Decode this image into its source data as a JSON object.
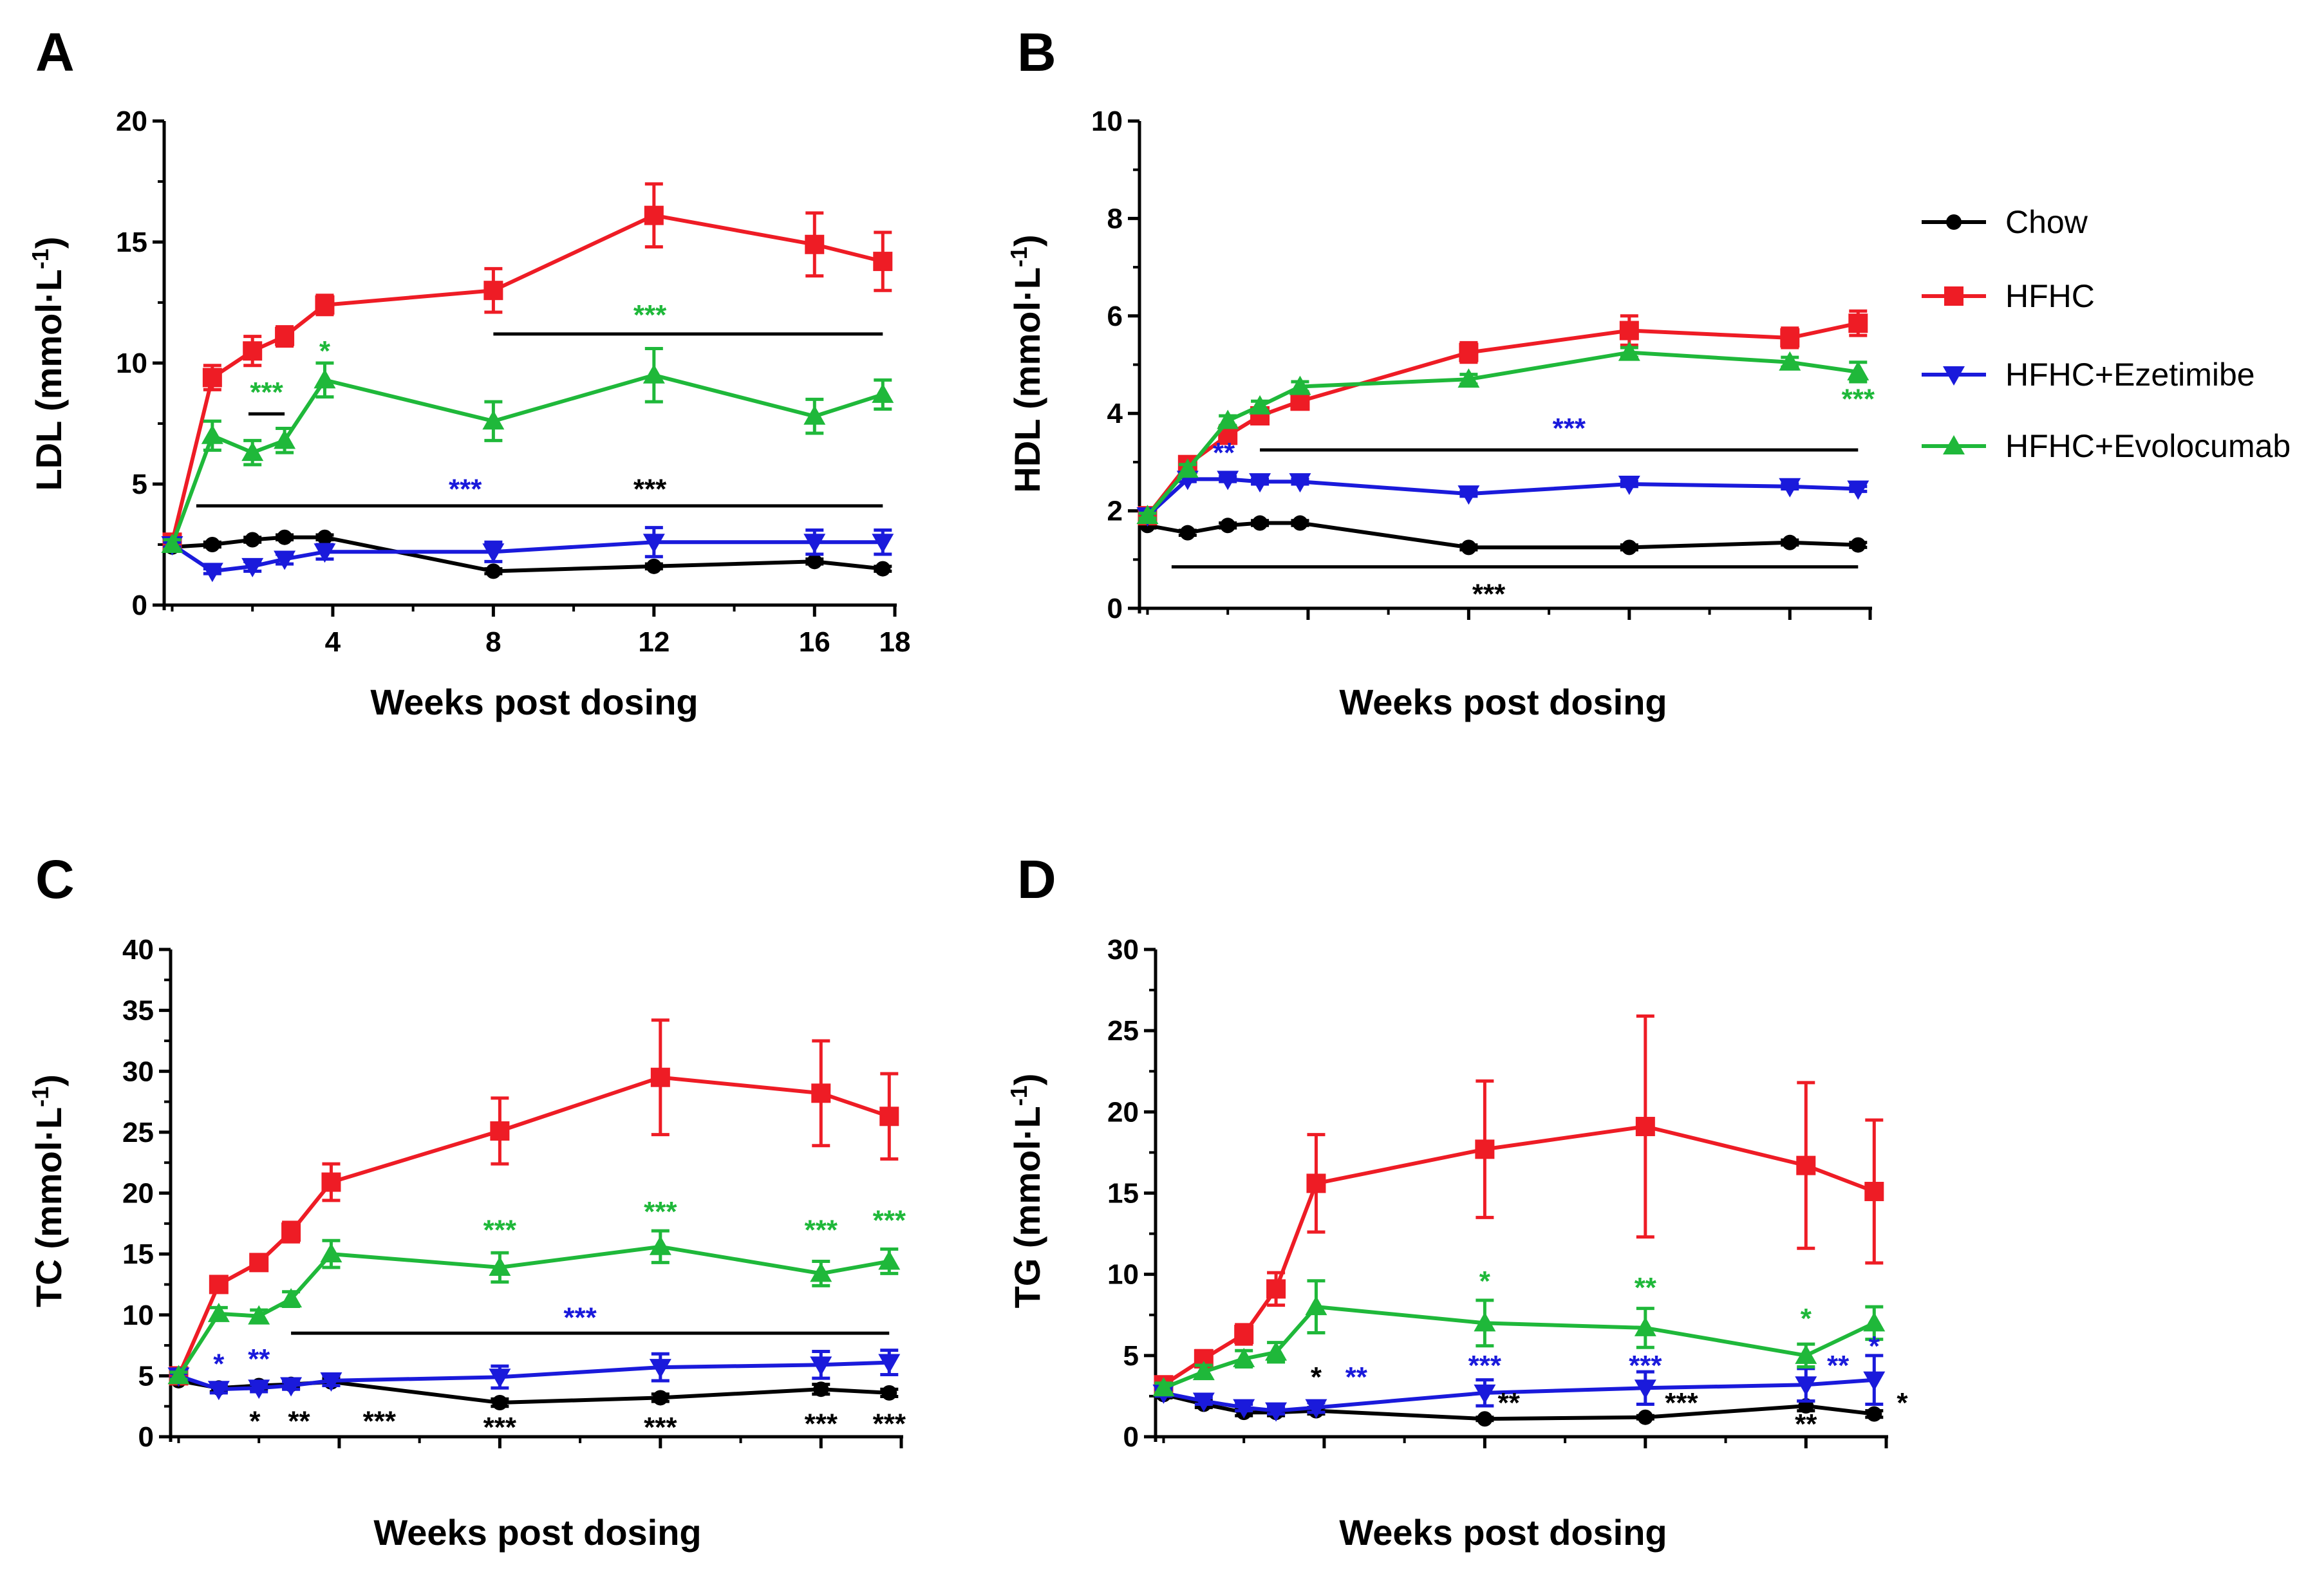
{
  "figure": {
    "colors": {
      "chow": "#000000",
      "hfhc": "#ee1c25",
      "ezetimibe": "#1a1adb",
      "evolocumab": "#1fb83a"
    },
    "legend": {
      "items": [
        {
          "label": "Chow",
          "key": "chow",
          "marker": "circle"
        },
        {
          "label": "HFHC",
          "key": "hfhc",
          "marker": "square"
        },
        {
          "label": "HFHC+Ezetimibe",
          "key": "ezetimibe",
          "marker": "triangle-down"
        },
        {
          "label": "HFHC+Evolocumab",
          "key": "evolocumab",
          "marker": "triangle-up"
        }
      ]
    }
  },
  "chart_data": [
    {
      "panel": "A",
      "type": "line",
      "ylabel": "LDL (mmol·L",
      "ylabel_sup": "-1",
      "ylabel_close": ")",
      "xlabel": "Weeks post dosing",
      "ylim": [
        0,
        20
      ],
      "yticks": [
        "0",
        "5",
        "10",
        "15",
        "20"
      ],
      "xlim": [
        -0.2,
        18
      ],
      "xticks": [
        "4",
        "8",
        "12",
        "16",
        "18"
      ],
      "xtick_values": [
        4,
        8,
        12,
        16,
        18
      ],
      "series": [
        {
          "name": "Chow",
          "key": "chow",
          "x": [
            0,
            1,
            2,
            2.8,
            3.8,
            8,
            12,
            16,
            17.7
          ],
          "y": [
            2.4,
            2.5,
            2.7,
            2.8,
            2.8,
            1.4,
            1.6,
            1.8,
            1.5
          ],
          "err": [
            0.1,
            0.1,
            0.1,
            0.1,
            0.1,
            0.1,
            0.1,
            0.1,
            0.1
          ]
        },
        {
          "name": "HFHC",
          "key": "hfhc",
          "x": [
            0,
            1,
            2,
            2.8,
            3.8,
            8,
            12,
            16,
            17.7
          ],
          "y": [
            2.6,
            9.4,
            10.5,
            11.1,
            12.4,
            13.0,
            16.1,
            14.9,
            14.2
          ],
          "err": [
            0.2,
            0.5,
            0.6,
            0.4,
            0.4,
            0.9,
            1.3,
            1.3,
            1.2
          ]
        },
        {
          "name": "HFHC+Ezetimibe",
          "key": "ezetimibe",
          "x": [
            0,
            1,
            2,
            2.8,
            3.8,
            8,
            12,
            16,
            17.7
          ],
          "y": [
            2.5,
            1.4,
            1.6,
            1.9,
            2.2,
            2.2,
            2.6,
            2.6,
            2.6
          ],
          "err": [
            0.1,
            0.1,
            0.2,
            0.2,
            0.3,
            0.4,
            0.6,
            0.5,
            0.5
          ]
        },
        {
          "name": "HFHC+Evolocumab",
          "key": "evolocumab",
          "x": [
            0,
            1,
            2,
            2.8,
            3.8,
            8,
            12,
            16,
            17.7
          ],
          "y": [
            2.5,
            7.0,
            6.3,
            6.8,
            9.3,
            7.6,
            9.5,
            7.8,
            8.7
          ],
          "err": [
            0.2,
            0.6,
            0.5,
            0.5,
            0.7,
            0.8,
            1.1,
            0.7,
            0.6
          ]
        }
      ],
      "sig_bars": [
        {
          "x1": 0.6,
          "x2": 17.7,
          "y": 4.1
        },
        {
          "x1": 8,
          "x2": 17.7,
          "y": 11.2
        },
        {
          "x1": 1.9,
          "x2": 2.8,
          "y": 7.9
        }
      ],
      "annotations": [
        {
          "text": "***",
          "color": "evolocumab",
          "x": 11.9,
          "y": 11.6
        },
        {
          "text": "***",
          "color": "evolocumab",
          "x": 2.35,
          "y": 8.4
        },
        {
          "text": "*",
          "color": "evolocumab",
          "x": 3.8,
          "y": 10.1
        },
        {
          "text": "***",
          "color": "ezetimibe",
          "x": 7.3,
          "y": 4.4
        },
        {
          "text": "***",
          "color": "chow",
          "x": 11.9,
          "y": 4.4
        }
      ]
    },
    {
      "panel": "B",
      "type": "line",
      "ylabel": "HDL (mmol·L",
      "ylabel_sup": "-1",
      "ylabel_close": ")",
      "xlabel": "Weeks post dosing",
      "ylim": [
        0,
        10
      ],
      "yticks": [
        "0",
        "2",
        "4",
        "6",
        "8",
        "10"
      ],
      "xlim": [
        -0.2,
        18
      ],
      "xticks": [
        "",
        "",
        "",
        "",
        ""
      ],
      "xtick_values": [
        4,
        8,
        12,
        16,
        18
      ],
      "series": [
        {
          "name": "Chow",
          "key": "chow",
          "x": [
            0,
            1,
            2,
            2.8,
            3.8,
            8,
            12,
            16,
            17.7
          ],
          "y": [
            1.7,
            1.55,
            1.7,
            1.75,
            1.75,
            1.25,
            1.25,
            1.35,
            1.3
          ],
          "err": [
            0.05,
            0.05,
            0.05,
            0.05,
            0.05,
            0.05,
            0.05,
            0.05,
            0.05
          ]
        },
        {
          "name": "HFHC",
          "key": "hfhc",
          "x": [
            0,
            1,
            2,
            2.8,
            3.8,
            8,
            12,
            16,
            17.7
          ],
          "y": [
            1.9,
            2.95,
            3.55,
            3.95,
            4.25,
            5.25,
            5.7,
            5.55,
            5.85
          ],
          "err": [
            0.05,
            0.1,
            0.1,
            0.1,
            0.1,
            0.2,
            0.3,
            0.2,
            0.25
          ]
        },
        {
          "name": "HFHC+Ezetimibe",
          "key": "ezetimibe",
          "x": [
            0,
            1,
            2,
            2.8,
            3.8,
            8,
            12,
            16,
            17.7
          ],
          "y": [
            1.9,
            2.65,
            2.65,
            2.6,
            2.6,
            2.35,
            2.55,
            2.5,
            2.45
          ],
          "err": [
            0.05,
            0.05,
            0.05,
            0.05,
            0.05,
            0.05,
            0.05,
            0.05,
            0.05
          ]
        },
        {
          "name": "HFHC+Evolocumab",
          "key": "evolocumab",
          "x": [
            0,
            1,
            2,
            2.8,
            3.8,
            8,
            12,
            16,
            17.7
          ],
          "y": [
            1.9,
            2.85,
            3.85,
            4.15,
            4.55,
            4.7,
            5.25,
            5.05,
            4.85
          ],
          "err": [
            0.05,
            0.1,
            0.1,
            0.1,
            0.1,
            0.1,
            0.1,
            0.1,
            0.2
          ]
        }
      ],
      "sig_bars": [
        {
          "x1": 0.6,
          "x2": 17.7,
          "y": 0.85
        },
        {
          "x1": 2.8,
          "x2": 17.7,
          "y": 3.25
        }
      ],
      "annotations": [
        {
          "text": "**",
          "color": "ezetimibe",
          "x": 1.9,
          "y": 3.0
        },
        {
          "text": "***",
          "color": "ezetimibe",
          "x": 10.5,
          "y": 3.5
        },
        {
          "text": "***",
          "color": "evolocumab",
          "x": 17.7,
          "y": 4.1
        },
        {
          "text": "***",
          "color": "chow",
          "x": 8.5,
          "y": 0.1
        }
      ]
    },
    {
      "panel": "C",
      "type": "line",
      "ylabel": "TC (mmol·L",
      "ylabel_sup": "-1",
      "ylabel_close": ")",
      "xlabel": "Weeks post dosing",
      "ylim": [
        0,
        40
      ],
      "yticks": [
        "0",
        "5",
        "10",
        "15",
        "20",
        "25",
        "30",
        "35",
        "40"
      ],
      "xlim": [
        -0.2,
        18
      ],
      "xticks": [
        "",
        "",
        "",
        "",
        ""
      ],
      "xtick_values": [
        4,
        8,
        12,
        16,
        18
      ],
      "series": [
        {
          "name": "Chow",
          "key": "chow",
          "x": [
            0,
            1,
            2,
            2.8,
            3.8,
            8,
            12,
            16,
            17.7
          ],
          "y": [
            4.6,
            4.0,
            4.2,
            4.3,
            4.5,
            2.8,
            3.2,
            3.9,
            3.6
          ],
          "err": [
            0.2,
            0.3,
            0.3,
            0.3,
            0.3,
            0.3,
            0.3,
            0.4,
            0.3
          ]
        },
        {
          "name": "HFHC",
          "key": "hfhc",
          "x": [
            0,
            1,
            2,
            2.8,
            3.8,
            8,
            12,
            16,
            17.7
          ],
          "y": [
            5.0,
            12.5,
            14.3,
            16.8,
            20.9,
            25.1,
            29.5,
            28.2,
            26.3
          ],
          "err": [
            0.3,
            0.5,
            0.6,
            0.8,
            1.5,
            2.7,
            4.7,
            4.3,
            3.5
          ]
        },
        {
          "name": "HFHC+Ezetimibe",
          "key": "ezetimibe",
          "x": [
            0,
            1,
            2,
            2.8,
            3.8,
            8,
            12,
            16,
            17.7
          ],
          "y": [
            5.0,
            3.9,
            4.0,
            4.2,
            4.6,
            4.9,
            5.7,
            5.9,
            6.1
          ],
          "err": [
            0.2,
            0.3,
            0.3,
            0.3,
            0.4,
            0.9,
            1.1,
            1.1,
            1.0
          ]
        },
        {
          "name": "HFHC+Evolocumab",
          "key": "evolocumab",
          "x": [
            0,
            1,
            2,
            2.8,
            3.8,
            8,
            12,
            16,
            17.7
          ],
          "y": [
            5.0,
            10.1,
            9.9,
            11.3,
            15.0,
            13.9,
            15.6,
            13.4,
            14.4
          ],
          "err": [
            0.3,
            0.5,
            0.5,
            0.6,
            1.1,
            1.2,
            1.3,
            1.0,
            1.0
          ]
        }
      ],
      "sig_bars": [
        {
          "x1": 2.8,
          "x2": 17.7,
          "y": 8.5
        }
      ],
      "annotations": [
        {
          "text": "***",
          "color": "ezetimibe",
          "x": 10,
          "y": 9.0
        },
        {
          "text": "***",
          "color": "evolocumab",
          "x": 8,
          "y": 16.2
        },
        {
          "text": "***",
          "color": "evolocumab",
          "x": 12,
          "y": 17.7
        },
        {
          "text": "***",
          "color": "evolocumab",
          "x": 16,
          "y": 16.2
        },
        {
          "text": "***",
          "color": "evolocumab",
          "x": 17.7,
          "y": 17.0
        },
        {
          "text": "*",
          "color": "ezetimibe",
          "x": 1.0,
          "y": 5.2
        },
        {
          "text": "**",
          "color": "ezetimibe",
          "x": 2.0,
          "y": 5.6
        },
        {
          "text": "*",
          "color": "chow",
          "x": 1.9,
          "y": 0.5
        },
        {
          "text": "**",
          "color": "chow",
          "x": 3.0,
          "y": 0.5
        },
        {
          "text": "***",
          "color": "chow",
          "x": 5.0,
          "y": 0.5
        },
        {
          "text": "***",
          "color": "chow",
          "x": 8.0,
          "y": 0.0
        },
        {
          "text": "***",
          "color": "chow",
          "x": 12.0,
          "y": 0.0
        },
        {
          "text": "***",
          "color": "chow",
          "x": 16.0,
          "y": 0.3
        },
        {
          "text": "***",
          "color": "chow",
          "x": 17.7,
          "y": 0.3
        }
      ]
    },
    {
      "panel": "D",
      "type": "line",
      "ylabel": "TG (mmol·L",
      "ylabel_sup": "-1",
      "ylabel_close": ")",
      "xlabel": "Weeks post dosing",
      "ylim": [
        0,
        30
      ],
      "yticks": [
        "0",
        "5",
        "10",
        "15",
        "20",
        "25",
        "30"
      ],
      "xlim": [
        -0.2,
        18
      ],
      "xticks": [
        "",
        "",
        "",
        "",
        ""
      ],
      "xtick_values": [
        4,
        8,
        12,
        16,
        18
      ],
      "series": [
        {
          "name": "Chow",
          "key": "chow",
          "x": [
            0,
            1,
            2,
            2.8,
            3.8,
            8,
            12,
            16,
            17.7
          ],
          "y": [
            2.6,
            2.0,
            1.5,
            1.5,
            1.6,
            1.1,
            1.2,
            1.9,
            1.4
          ],
          "err": [
            0.2,
            0.2,
            0.2,
            0.2,
            0.2,
            0.1,
            0.1,
            0.3,
            0.2
          ]
        },
        {
          "name": "HFHC",
          "key": "hfhc",
          "x": [
            0,
            1,
            2,
            2.8,
            3.8,
            8,
            12,
            16,
            17.7
          ],
          "y": [
            3.2,
            4.8,
            6.3,
            9.1,
            15.6,
            17.7,
            19.1,
            16.7,
            15.1
          ],
          "err": [
            0.3,
            0.5,
            0.6,
            1.0,
            3.0,
            4.2,
            6.8,
            5.1,
            4.4
          ]
        },
        {
          "name": "HFHC+Ezetimibe",
          "key": "ezetimibe",
          "x": [
            0,
            1,
            2,
            2.8,
            3.8,
            8,
            12,
            16,
            17.7
          ],
          "y": [
            2.7,
            2.2,
            1.8,
            1.6,
            1.8,
            2.7,
            3.0,
            3.2,
            3.5
          ],
          "err": [
            0.2,
            0.2,
            0.2,
            0.2,
            0.3,
            0.8,
            1.0,
            1.0,
            1.5
          ]
        },
        {
          "name": "HFHC+Evolocumab",
          "key": "evolocumab",
          "x": [
            0,
            1,
            2,
            2.8,
            3.8,
            8,
            12,
            16,
            17.7
          ],
          "y": [
            3.0,
            4.0,
            4.8,
            5.2,
            8.0,
            7.0,
            6.7,
            5.0,
            7.0
          ],
          "err": [
            0.3,
            0.4,
            0.5,
            0.6,
            1.6,
            1.4,
            1.2,
            0.7,
            1.0
          ]
        }
      ],
      "sig_bars": [],
      "annotations": [
        {
          "text": "*",
          "color": "evolocumab",
          "x": 8.0,
          "y": 9.0
        },
        {
          "text": "**",
          "color": "evolocumab",
          "x": 12.0,
          "y": 8.6
        },
        {
          "text": "*",
          "color": "evolocumab",
          "x": 16.0,
          "y": 6.7
        },
        {
          "text": "*",
          "color": "chow",
          "x": 3.8,
          "y": 3.1
        },
        {
          "text": "**",
          "color": "ezetimibe",
          "x": 4.8,
          "y": 3.1
        },
        {
          "text": "***",
          "color": "ezetimibe",
          "x": 8.0,
          "y": 3.8
        },
        {
          "text": "***",
          "color": "ezetimibe",
          "x": 12.0,
          "y": 3.8
        },
        {
          "text": "**",
          "color": "ezetimibe",
          "x": 16.8,
          "y": 3.8
        },
        {
          "text": "*",
          "color": "ezetimibe",
          "x": 17.7,
          "y": 5.0
        },
        {
          "text": "**",
          "color": "chow",
          "x": 8.6,
          "y": 1.5
        },
        {
          "text": "***",
          "color": "chow",
          "x": 12.9,
          "y": 1.5
        },
        {
          "text": "**",
          "color": "chow",
          "x": 16.0,
          "y": 0.2
        },
        {
          "text": "*",
          "color": "chow",
          "x": 18.4,
          "y": 1.5
        }
      ]
    }
  ]
}
